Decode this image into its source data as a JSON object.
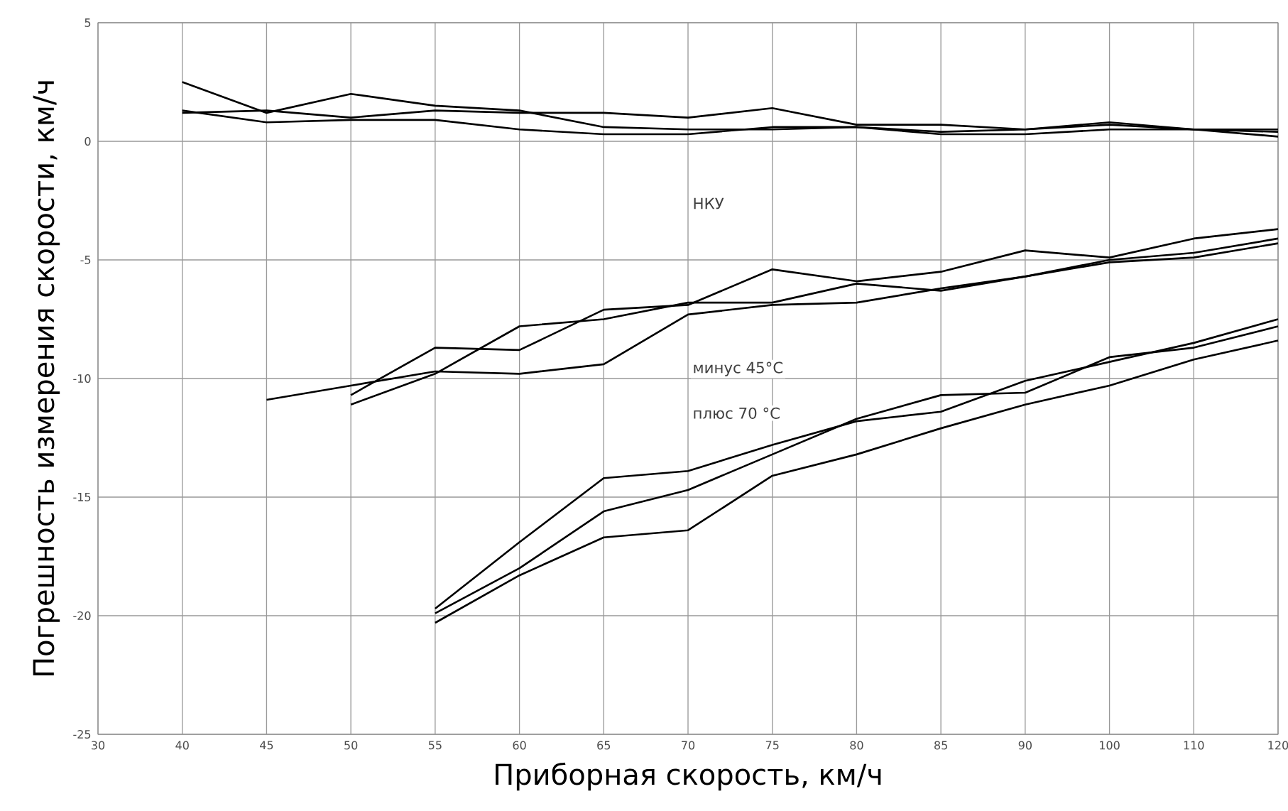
{
  "chart_data": {
    "type": "line",
    "xlabel": "Приборная скорость, км/ч",
    "ylabel": "Погрешность измерения скорости, км/ч",
    "categories": [
      "30",
      "40",
      "45",
      "50",
      "55",
      "60",
      "65",
      "70",
      "75",
      "80",
      "85",
      "90",
      "100",
      "110",
      "120"
    ],
    "ylim": [
      -25,
      5
    ],
    "yticks": [
      -25,
      -20,
      -15,
      -10,
      -5,
      0,
      5
    ],
    "grid": true,
    "line_style": "solid",
    "marker": "none",
    "series": [
      {
        "color": "#000000",
        "values": [
          null,
          2.5,
          1.2,
          2.0,
          1.5,
          1.3,
          0.6,
          0.5,
          0.5,
          0.6,
          0.4,
          0.5,
          0.7,
          0.5,
          0.5
        ]
      },
      {
        "color": "#000000",
        "values": [
          null,
          1.2,
          1.3,
          1.0,
          1.3,
          1.2,
          1.2,
          1.0,
          1.4,
          0.7,
          0.7,
          0.5,
          0.8,
          0.5,
          0.4
        ]
      },
      {
        "color": "#000000",
        "values": [
          null,
          1.3,
          0.8,
          0.9,
          0.9,
          0.5,
          0.3,
          0.3,
          0.6,
          0.6,
          0.3,
          0.3,
          0.5,
          0.5,
          0.2
        ]
      },
      {
        "color": "#000000",
        "values": [
          null,
          null,
          -10.9,
          -10.3,
          -9.7,
          -9.8,
          -9.4,
          -7.3,
          -6.9,
          -6.8,
          -6.2,
          -5.7,
          -5.1,
          -4.9,
          -4.3
        ]
      },
      {
        "color": "#000000",
        "values": [
          null,
          null,
          null,
          -10.7,
          -8.7,
          -8.8,
          -7.1,
          -6.9,
          -5.4,
          -5.9,
          -5.5,
          -4.6,
          -4.9,
          -4.1,
          -3.7
        ]
      },
      {
        "color": "#000000",
        "values": [
          null,
          null,
          null,
          -11.1,
          -9.8,
          -7.8,
          -7.5,
          -6.8,
          -6.8,
          -6.0,
          -6.3,
          -5.7,
          -5.0,
          -4.7,
          -4.1
        ]
      },
      {
        "color": "#000000",
        "values": [
          null,
          null,
          null,
          null,
          -19.7,
          -16.9,
          -14.2,
          -13.9,
          -12.8,
          -11.8,
          -11.4,
          -10.1,
          -9.3,
          -8.5,
          -7.5
        ]
      },
      {
        "color": "#000000",
        "values": [
          null,
          null,
          null,
          null,
          -19.9,
          -18.0,
          -15.6,
          -14.7,
          -13.2,
          -11.7,
          -10.7,
          -10.6,
          -9.1,
          -8.7,
          -7.8
        ]
      },
      {
        "color": "#000000",
        "values": [
          null,
          null,
          null,
          null,
          -20.3,
          -18.3,
          -16.7,
          -16.4,
          -14.1,
          -13.2,
          -12.1,
          -11.1,
          -10.3,
          -9.2,
          -8.4
        ]
      }
    ],
    "annotations": [
      "НКУ",
      "минус 45°С",
      "плюс 70 °С"
    ]
  }
}
